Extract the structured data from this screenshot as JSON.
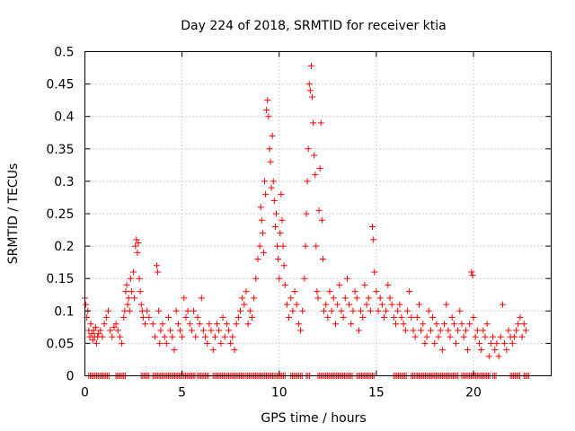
{
  "chart_data": {
    "type": "scatter",
    "title": "Day 224 of 2018, SRMTID for receiver ktia",
    "xlabel": "GPS time / hours",
    "ylabel": "SRMTID / TECUs",
    "xlim": [
      0,
      24
    ],
    "ylim": [
      0,
      0.5
    ],
    "xticks": [
      0,
      5,
      10,
      15,
      20
    ],
    "yticks": [
      0,
      0.05,
      0.1,
      0.15,
      0.2,
      0.25,
      0.3,
      0.35,
      0.4,
      0.45,
      0.5
    ],
    "ytick_labels": [
      "0",
      "0.05",
      "0.1",
      "0.15",
      "0.2",
      "0.25",
      "0.3",
      "0.35",
      "0.4",
      "0.45",
      "0.5"
    ],
    "grid": true,
    "marker": "+",
    "color": "#ff0000",
    "series": [
      {
        "name": "SRMTID",
        "points": [
          [
            0.0,
            0.12
          ],
          [
            0.05,
            0.11
          ],
          [
            0.1,
            0.09
          ],
          [
            0.15,
            0.1
          ],
          [
            0.2,
            0.07
          ],
          [
            0.25,
            0.06
          ],
          [
            0.3,
            0.08
          ],
          [
            0.35,
            0.065
          ],
          [
            0.4,
            0.055
          ],
          [
            0.45,
            0.07
          ],
          [
            0.5,
            0.06
          ],
          [
            0.55,
            0.075
          ],
          [
            0.6,
            0.05
          ],
          [
            0.65,
            0.06
          ],
          [
            0.7,
            0.065
          ],
          [
            0.8,
            0.07
          ],
          [
            0.9,
            0.06
          ],
          [
            1.0,
            0.08
          ],
          [
            1.1,
            0.09
          ],
          [
            1.2,
            0.1
          ],
          [
            1.3,
            0.07
          ],
          [
            1.4,
            0.06
          ],
          [
            1.5,
            0.075
          ],
          [
            1.6,
            0.08
          ],
          [
            1.7,
            0.07
          ],
          [
            1.8,
            0.06
          ],
          [
            1.9,
            0.05
          ],
          [
            2.0,
            0.09
          ],
          [
            2.05,
            0.1
          ],
          [
            2.1,
            0.13
          ],
          [
            2.15,
            0.14
          ],
          [
            2.2,
            0.11
          ],
          [
            2.25,
            0.12
          ],
          [
            2.3,
            0.1
          ],
          [
            2.35,
            0.15
          ],
          [
            2.4,
            0.13
          ],
          [
            2.5,
            0.16
          ],
          [
            2.55,
            0.12
          ],
          [
            2.6,
            0.2
          ],
          [
            2.65,
            0.21
          ],
          [
            2.7,
            0.19
          ],
          [
            2.75,
            0.205
          ],
          [
            2.8,
            0.15
          ],
          [
            2.85,
            0.13
          ],
          [
            2.9,
            0.11
          ],
          [
            2.95,
            0.1
          ],
          [
            3.0,
            0.09
          ],
          [
            3.1,
            0.08
          ],
          [
            3.2,
            0.1
          ],
          [
            3.3,
            0.09
          ],
          [
            3.5,
            0.08
          ],
          [
            3.6,
            0.06
          ],
          [
            3.7,
            0.17
          ],
          [
            3.75,
            0.16
          ],
          [
            3.8,
            0.1
          ],
          [
            3.85,
            0.05
          ],
          [
            3.9,
            0.07
          ],
          [
            4.0,
            0.08
          ],
          [
            4.1,
            0.06
          ],
          [
            4.2,
            0.05
          ],
          [
            4.3,
            0.09
          ],
          [
            4.4,
            0.07
          ],
          [
            4.5,
            0.06
          ],
          [
            4.6,
            0.04
          ],
          [
            4.7,
            0.1
          ],
          [
            4.8,
            0.08
          ],
          [
            4.9,
            0.07
          ],
          [
            5.0,
            0.06
          ],
          [
            5.1,
            0.12
          ],
          [
            5.2,
            0.09
          ],
          [
            5.3,
            0.1
          ],
          [
            5.4,
            0.08
          ],
          [
            5.5,
            0.07
          ],
          [
            5.6,
            0.1
          ],
          [
            5.7,
            0.06
          ],
          [
            5.8,
            0.09
          ],
          [
            5.9,
            0.08
          ],
          [
            6.0,
            0.12
          ],
          [
            6.1,
            0.07
          ],
          [
            6.2,
            0.06
          ],
          [
            6.3,
            0.05
          ],
          [
            6.4,
            0.08
          ],
          [
            6.5,
            0.07
          ],
          [
            6.6,
            0.04
          ],
          [
            6.7,
            0.06
          ],
          [
            6.8,
            0.08
          ],
          [
            6.9,
            0.07
          ],
          [
            7.0,
            0.05
          ],
          [
            7.1,
            0.09
          ],
          [
            7.2,
            0.06
          ],
          [
            7.3,
            0.08
          ],
          [
            7.4,
            0.07
          ],
          [
            7.5,
            0.05
          ],
          [
            7.6,
            0.06
          ],
          [
            7.7,
            0.04
          ],
          [
            7.8,
            0.08
          ],
          [
            7.9,
            0.09
          ],
          [
            8.0,
            0.1
          ],
          [
            8.1,
            0.12
          ],
          [
            8.2,
            0.11
          ],
          [
            8.3,
            0.13
          ],
          [
            8.4,
            0.08
          ],
          [
            8.5,
            0.1
          ],
          [
            8.6,
            0.09
          ],
          [
            8.7,
            0.12
          ],
          [
            8.8,
            0.15
          ],
          [
            8.9,
            0.18
          ],
          [
            9.0,
            0.2
          ],
          [
            9.05,
            0.26
          ],
          [
            9.1,
            0.24
          ],
          [
            9.15,
            0.22
          ],
          [
            9.2,
            0.19
          ],
          [
            9.25,
            0.3
          ],
          [
            9.3,
            0.28
          ],
          [
            9.35,
            0.41
          ],
          [
            9.4,
            0.425
          ],
          [
            9.45,
            0.4
          ],
          [
            9.5,
            0.35
          ],
          [
            9.55,
            0.33
          ],
          [
            9.6,
            0.29
          ],
          [
            9.65,
            0.37
          ],
          [
            9.7,
            0.3
          ],
          [
            9.75,
            0.27
          ],
          [
            9.8,
            0.23
          ],
          [
            9.85,
            0.25
          ],
          [
            9.9,
            0.2
          ],
          [
            9.95,
            0.18
          ],
          [
            10.0,
            0.15
          ],
          [
            10.05,
            0.22
          ],
          [
            10.1,
            0.28
          ],
          [
            10.15,
            0.24
          ],
          [
            10.2,
            0.2
          ],
          [
            10.25,
            0.17
          ],
          [
            10.3,
            0.14
          ],
          [
            10.4,
            0.11
          ],
          [
            10.5,
            0.09
          ],
          [
            10.6,
            0.12
          ],
          [
            10.7,
            0.1
          ],
          [
            10.8,
            0.13
          ],
          [
            10.9,
            0.11
          ],
          [
            11.0,
            0.08
          ],
          [
            11.1,
            0.07
          ],
          [
            11.2,
            0.1
          ],
          [
            11.3,
            0.15
          ],
          [
            11.35,
            0.2
          ],
          [
            11.4,
            0.25
          ],
          [
            11.45,
            0.3
          ],
          [
            11.5,
            0.35
          ],
          [
            11.55,
            0.45
          ],
          [
            11.6,
            0.44
          ],
          [
            11.65,
            0.478
          ],
          [
            11.7,
            0.43
          ],
          [
            11.75,
            0.39
          ],
          [
            11.8,
            0.34
          ],
          [
            11.85,
            0.31
          ],
          [
            11.9,
            0.2
          ],
          [
            11.95,
            0.13
          ],
          [
            12.0,
            0.12
          ],
          [
            12.05,
            0.255
          ],
          [
            12.1,
            0.32
          ],
          [
            12.15,
            0.39
          ],
          [
            12.2,
            0.24
          ],
          [
            12.25,
            0.18
          ],
          [
            12.3,
            0.1
          ],
          [
            12.4,
            0.11
          ],
          [
            12.5,
            0.09
          ],
          [
            12.6,
            0.13
          ],
          [
            12.7,
            0.1
          ],
          [
            12.8,
            0.12
          ],
          [
            12.9,
            0.08
          ],
          [
            13.0,
            0.11
          ],
          [
            13.1,
            0.14
          ],
          [
            13.2,
            0.1
          ],
          [
            13.3,
            0.09
          ],
          [
            13.4,
            0.12
          ],
          [
            13.5,
            0.15
          ],
          [
            13.6,
            0.11
          ],
          [
            13.7,
            0.08
          ],
          [
            13.8,
            0.1
          ],
          [
            13.9,
            0.13
          ],
          [
            14.0,
            0.12
          ],
          [
            14.1,
            0.07
          ],
          [
            14.2,
            0.1
          ],
          [
            14.3,
            0.09
          ],
          [
            14.4,
            0.14
          ],
          [
            14.5,
            0.11
          ],
          [
            14.6,
            0.12
          ],
          [
            14.7,
            0.1
          ],
          [
            14.8,
            0.23
          ],
          [
            14.85,
            0.21
          ],
          [
            14.9,
            0.16
          ],
          [
            15.0,
            0.13
          ],
          [
            15.1,
            0.1
          ],
          [
            15.2,
            0.12
          ],
          [
            15.3,
            0.11
          ],
          [
            15.4,
            0.09
          ],
          [
            15.5,
            0.1
          ],
          [
            15.6,
            0.14
          ],
          [
            15.7,
            0.12
          ],
          [
            15.8,
            0.11
          ],
          [
            15.9,
            0.09
          ],
          [
            16.0,
            0.08
          ],
          [
            16.1,
            0.1
          ],
          [
            16.2,
            0.11
          ],
          [
            16.3,
            0.09
          ],
          [
            16.4,
            0.08
          ],
          [
            16.5,
            0.07
          ],
          [
            16.6,
            0.1
          ],
          [
            16.7,
            0.13
          ],
          [
            16.8,
            0.09
          ],
          [
            16.9,
            0.07
          ],
          [
            17.0,
            0.06
          ],
          [
            17.1,
            0.09
          ],
          [
            17.2,
            0.11
          ],
          [
            17.3,
            0.07
          ],
          [
            17.4,
            0.08
          ],
          [
            17.5,
            0.05
          ],
          [
            17.6,
            0.06
          ],
          [
            17.7,
            0.1
          ],
          [
            17.8,
            0.07
          ],
          [
            17.9,
            0.09
          ],
          [
            18.0,
            0.05
          ],
          [
            18.1,
            0.08
          ],
          [
            18.2,
            0.06
          ],
          [
            18.3,
            0.07
          ],
          [
            18.4,
            0.04
          ],
          [
            18.5,
            0.08
          ],
          [
            18.6,
            0.11
          ],
          [
            18.7,
            0.07
          ],
          [
            18.8,
            0.06
          ],
          [
            18.9,
            0.09
          ],
          [
            19.0,
            0.08
          ],
          [
            19.1,
            0.05
          ],
          [
            19.2,
            0.07
          ],
          [
            19.3,
            0.1
          ],
          [
            19.4,
            0.08
          ],
          [
            19.5,
            0.06
          ],
          [
            19.6,
            0.07
          ],
          [
            19.7,
            0.04
          ],
          [
            19.8,
            0.08
          ],
          [
            19.9,
            0.16
          ],
          [
            19.95,
            0.155
          ],
          [
            20.0,
            0.09
          ],
          [
            20.1,
            0.06
          ],
          [
            20.2,
            0.07
          ],
          [
            20.3,
            0.05
          ],
          [
            20.4,
            0.04
          ],
          [
            20.5,
            0.07
          ],
          [
            20.6,
            0.06
          ],
          [
            20.7,
            0.08
          ],
          [
            20.8,
            0.03
          ],
          [
            20.9,
            0.05
          ],
          [
            21.0,
            0.06
          ],
          [
            21.1,
            0.04
          ],
          [
            21.2,
            0.05
          ],
          [
            21.3,
            0.03
          ],
          [
            21.4,
            0.06
          ],
          [
            21.5,
            0.11
          ],
          [
            21.6,
            0.05
          ],
          [
            21.7,
            0.04
          ],
          [
            21.8,
            0.07
          ],
          [
            21.9,
            0.06
          ],
          [
            22.0,
            0.05
          ],
          [
            22.1,
            0.06
          ],
          [
            22.2,
            0.07
          ],
          [
            22.3,
            0.08
          ],
          [
            22.4,
            0.09
          ],
          [
            22.5,
            0.06
          ],
          [
            22.6,
            0.08
          ],
          [
            22.7,
            0.07
          ]
        ]
      }
    ],
    "zero_band": [
      [
        0.2,
        1.3
      ],
      [
        1.6,
        2.1
      ],
      [
        2.9,
        3.3
      ],
      [
        3.5,
        5.7
      ],
      [
        5.8,
        6.4
      ],
      [
        6.6,
        8.2
      ],
      [
        8.3,
        10.3
      ],
      [
        10.6,
        11.0
      ],
      [
        11.1,
        11.2
      ],
      [
        11.4,
        11.6
      ],
      [
        12.0,
        13.8
      ],
      [
        14.0,
        14.9
      ],
      [
        15.9,
        16.6
      ],
      [
        16.8,
        19.2
      ],
      [
        19.4,
        20.9
      ],
      [
        21.0,
        21.2
      ],
      [
        21.9,
        22.4
      ],
      [
        22.6,
        22.9
      ]
    ]
  }
}
